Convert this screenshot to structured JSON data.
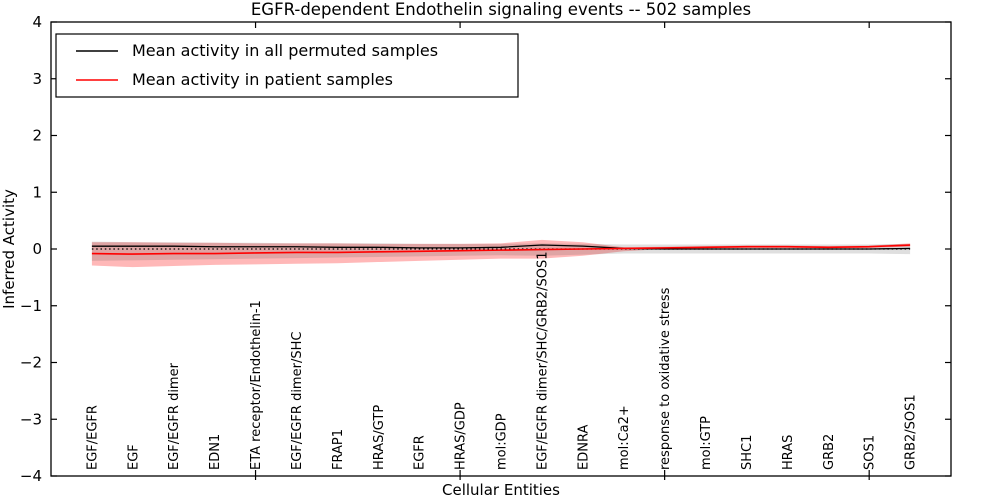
{
  "chart_data": {
    "type": "line",
    "title": "EGFR-dependent Endothelin signaling events -- 502 samples",
    "xlabel": "Cellular Entities",
    "ylabel": "Inferred Activity",
    "ylim": [
      -4,
      4
    ],
    "xlim": [
      0,
      22
    ],
    "grid": false,
    "legend_position": "upper left",
    "yticks": {
      "values": [
        4,
        3,
        2,
        1,
        0,
        -1,
        -2,
        -3,
        -4
      ],
      "labels": [
        "4",
        "3",
        "2",
        "1",
        "0",
        "−1",
        "−2",
        "−3",
        "−4"
      ]
    },
    "xticks_major": [
      5,
      10,
      15,
      20
    ],
    "categories": [
      "EGF/EGFR",
      "EGF",
      "EGF/EGFR dimer",
      "EDN1",
      "ETA receptor/Endothelin-1",
      "EGF/EGFR dimer/SHC",
      "FRAP1",
      "HRAS/GTP",
      "EGFR",
      "HRAS/GDP",
      "mol:GDP",
      "EGF/EGFR dimer/SHC/GRB2/SOS1",
      "EDNRA",
      "mol:Ca2+",
      "response to oxidative stress",
      "mol:GTP",
      "SHC1",
      "HRAS",
      "GRB2",
      "SOS1",
      "GRB2/SOS1"
    ],
    "x_positions": [
      1,
      2,
      3,
      4,
      5,
      6,
      7,
      8,
      9,
      10,
      11,
      12,
      13,
      14,
      15,
      16,
      17,
      18,
      19,
      20,
      21
    ],
    "series": [
      {
        "name": "Mean activity in all permuted samples",
        "color": "#000000",
        "style": "solid",
        "values": [
          0.05,
          0.05,
          0.05,
          0.04,
          0.04,
          0.04,
          0.03,
          0.03,
          0.02,
          0.02,
          0.03,
          0.07,
          0.05,
          0.01,
          0.0,
          0.0,
          0.0,
          0.0,
          0.0,
          0.0,
          0.01
        ]
      },
      {
        "name": "Mean activity in patient samples",
        "color": "#ff0000",
        "style": "solid",
        "values": [
          -0.08,
          -0.09,
          -0.08,
          -0.08,
          -0.07,
          -0.06,
          -0.06,
          -0.05,
          -0.04,
          -0.03,
          -0.02,
          -0.01,
          0.0,
          0.01,
          0.02,
          0.03,
          0.04,
          0.04,
          0.03,
          0.04,
          0.07
        ]
      }
    ],
    "bands": [
      {
        "name": "patient-samples-std-band",
        "color": "rgba(255,0,0,0.28)",
        "upper": [
          0.12,
          0.12,
          0.11,
          0.11,
          0.1,
          0.1,
          0.1,
          0.09,
          0.09,
          0.09,
          0.1,
          0.16,
          0.12,
          0.03,
          0.04,
          0.05,
          0.06,
          0.06,
          0.05,
          0.06,
          0.1
        ],
        "lower": [
          -0.29,
          -0.32,
          -0.3,
          -0.28,
          -0.27,
          -0.26,
          -0.25,
          -0.23,
          -0.21,
          -0.19,
          -0.17,
          -0.17,
          -0.12,
          -0.04,
          0.0,
          0.01,
          0.02,
          0.02,
          0.01,
          0.02,
          0.04
        ]
      },
      {
        "name": "permuted-samples-std-band",
        "color": "rgba(80,80,80,0.18)",
        "upper": [
          0.13,
          0.12,
          0.12,
          0.11,
          0.11,
          0.1,
          0.1,
          0.1,
          0.09,
          0.09,
          0.09,
          0.1,
          0.09,
          0.08,
          0.08,
          0.08,
          0.08,
          0.08,
          0.08,
          0.08,
          0.09
        ],
        "lower": [
          -0.21,
          -0.2,
          -0.19,
          -0.18,
          -0.17,
          -0.16,
          -0.15,
          -0.14,
          -0.13,
          -0.12,
          -0.11,
          -0.12,
          -0.1,
          -0.08,
          -0.08,
          -0.08,
          -0.08,
          -0.08,
          -0.08,
          -0.08,
          -0.09
        ]
      }
    ],
    "zero_line": {
      "value": 0,
      "style": "dotted",
      "color": "#000000"
    },
    "legend": [
      {
        "label": "Mean activity in all permuted samples",
        "color": "#000000"
      },
      {
        "label": "Mean activity in patient samples",
        "color": "#ff0000"
      }
    ]
  },
  "colors": {
    "frame": "#000000",
    "background": "#ffffff",
    "patient_line": "#ff0000",
    "permuted_line": "#000000"
  }
}
